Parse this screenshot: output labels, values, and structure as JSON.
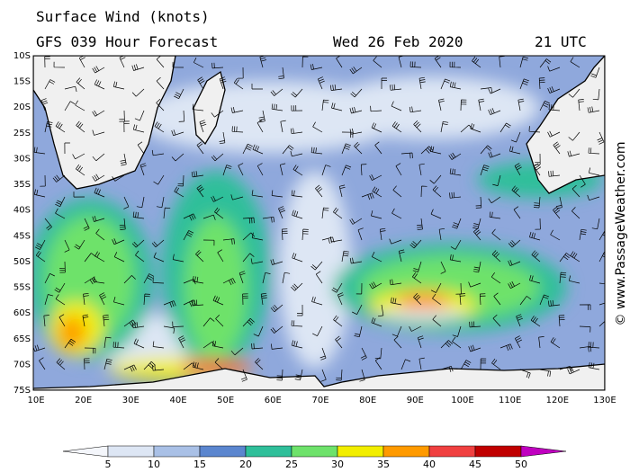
{
  "header": {
    "title": "Surface Wind (knots)",
    "subtitle": "GFS 039 Hour Forecast",
    "date": "Wed 26 Feb 2020",
    "time": "21 UTC"
  },
  "map": {
    "lat_labels": [
      "10S",
      "15S",
      "20S",
      "25S",
      "30S",
      "35S",
      "40S",
      "45S",
      "50S",
      "55S",
      "60S",
      "65S",
      "70S",
      "75S"
    ],
    "lon_labels": [
      "10E",
      "20E",
      "30E",
      "40E",
      "50E",
      "60E",
      "70E",
      "80E",
      "90E",
      "100E",
      "110E",
      "120E",
      "130E"
    ],
    "credit": "© www.PassageWeather.com"
  },
  "legend": {
    "ticks": [
      "5",
      "10",
      "15",
      "20",
      "25",
      "30",
      "35",
      "40",
      "45",
      "50"
    ],
    "colors": [
      "#f4f6fb",
      "#dde6f4",
      "#a9c0e6",
      "#5b86cf",
      "#2fbf9a",
      "#6ee26b",
      "#f2ee00",
      "#ff9a00",
      "#f04040",
      "#c00000",
      "#c000c0"
    ]
  }
}
